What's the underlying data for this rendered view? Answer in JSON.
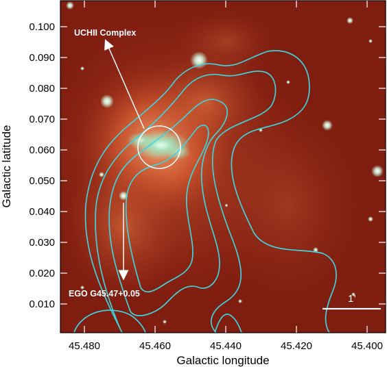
{
  "axes": {
    "xlabel": "Galactic longitude",
    "ylabel": "Galactic latitude",
    "x_ticks": [
      "45.480",
      "45.460",
      "45.440",
      "45.420",
      "45.400"
    ],
    "y_ticks": [
      "0.100",
      "0.090",
      "0.080",
      "0.070",
      "0.060",
      "0.050",
      "0.040",
      "0.030",
      "0.020",
      "0.010"
    ]
  },
  "annotations": {
    "uchii": "UCHII Complex",
    "ego": "EGO G45.47+0.05",
    "scale_bar": "1’"
  },
  "colors": {
    "contour": "#3fd3dc",
    "annotation": "#ffffff",
    "background_glow": "#c23a22"
  }
}
